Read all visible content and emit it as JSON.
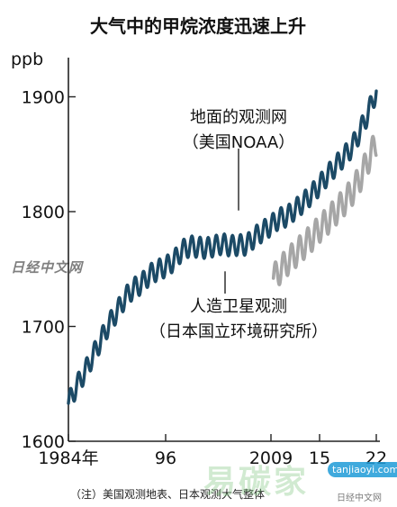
{
  "chart_data": {
    "type": "line",
    "title": "大气中的甲烷浓度迅速上升",
    "ylabel": "ppb",
    "ylim": [
      1600,
      1920
    ],
    "xlim": [
      1984,
      2022
    ],
    "y_ticks": [
      1600,
      1700,
      1800,
      1900
    ],
    "x_ticks": [
      {
        "value": 1984,
        "label": "1984年"
      },
      {
        "value": 1996,
        "label": "96"
      },
      {
        "value": 2009,
        "label": "2009"
      },
      {
        "value": 2015,
        "label": "15"
      },
      {
        "value": 2022,
        "label": "22"
      }
    ],
    "grid": false,
    "series": [
      {
        "name": "地面的观测网（美国NOAA）",
        "label_lines": [
          "地面的观测网",
          "（美国NOAA）"
        ],
        "color": "#1c4a66",
        "seasonal_amplitude": 9,
        "points": [
          [
            1984.0,
            1633
          ],
          [
            1985.0,
            1648
          ],
          [
            1986.0,
            1660
          ],
          [
            1987.0,
            1674
          ],
          [
            1988.0,
            1688
          ],
          [
            1989.0,
            1702
          ],
          [
            1990.0,
            1713
          ],
          [
            1991.0,
            1725
          ],
          [
            1992.0,
            1733
          ],
          [
            1993.0,
            1737
          ],
          [
            1994.0,
            1745
          ],
          [
            1995.0,
            1749
          ],
          [
            1996.0,
            1752
          ],
          [
            1997.0,
            1757
          ],
          [
            1998.0,
            1766
          ],
          [
            1999.0,
            1770
          ],
          [
            2000.0,
            1769
          ],
          [
            2001.0,
            1768
          ],
          [
            2002.0,
            1770
          ],
          [
            2003.0,
            1772
          ],
          [
            2004.0,
            1770
          ],
          [
            2005.0,
            1771
          ],
          [
            2006.0,
            1771
          ],
          [
            2007.0,
            1778
          ],
          [
            2008.0,
            1783
          ],
          [
            2009.0,
            1788
          ],
          [
            2010.0,
            1794
          ],
          [
            2011.0,
            1796
          ],
          [
            2012.0,
            1802
          ],
          [
            2013.0,
            1808
          ],
          [
            2014.0,
            1815
          ],
          [
            2015.0,
            1823
          ],
          [
            2016.0,
            1832
          ],
          [
            2017.0,
            1840
          ],
          [
            2018.0,
            1848
          ],
          [
            2019.0,
            1856
          ],
          [
            2020.0,
            1870
          ],
          [
            2021.0,
            1886
          ],
          [
            2022.0,
            1905
          ]
        ]
      },
      {
        "name": "人造卫星观测（日本国立环境研究所）",
        "label_lines": [
          "人造卫星观测",
          "（日本国立环境研究所）"
        ],
        "color": "#a6a6a6",
        "seasonal_amplitude": 12,
        "points": [
          [
            2009.3,
            1742
          ],
          [
            2010.0,
            1748
          ],
          [
            2011.0,
            1756
          ],
          [
            2012.0,
            1763
          ],
          [
            2013.0,
            1770
          ],
          [
            2014.0,
            1777
          ],
          [
            2015.0,
            1785
          ],
          [
            2016.0,
            1792
          ],
          [
            2017.0,
            1800
          ],
          [
            2018.0,
            1808
          ],
          [
            2019.0,
            1817
          ],
          [
            2020.0,
            1829
          ],
          [
            2021.0,
            1845
          ],
          [
            2022.0,
            1860
          ]
        ]
      }
    ]
  },
  "note": "（注）美国观测地表、日本观测大气整体",
  "watermarks": {
    "left": "日经中文网",
    "corner": "日经中文网",
    "site_logo": "易碳家",
    "site_url": "tanjiaoyi.com"
  }
}
